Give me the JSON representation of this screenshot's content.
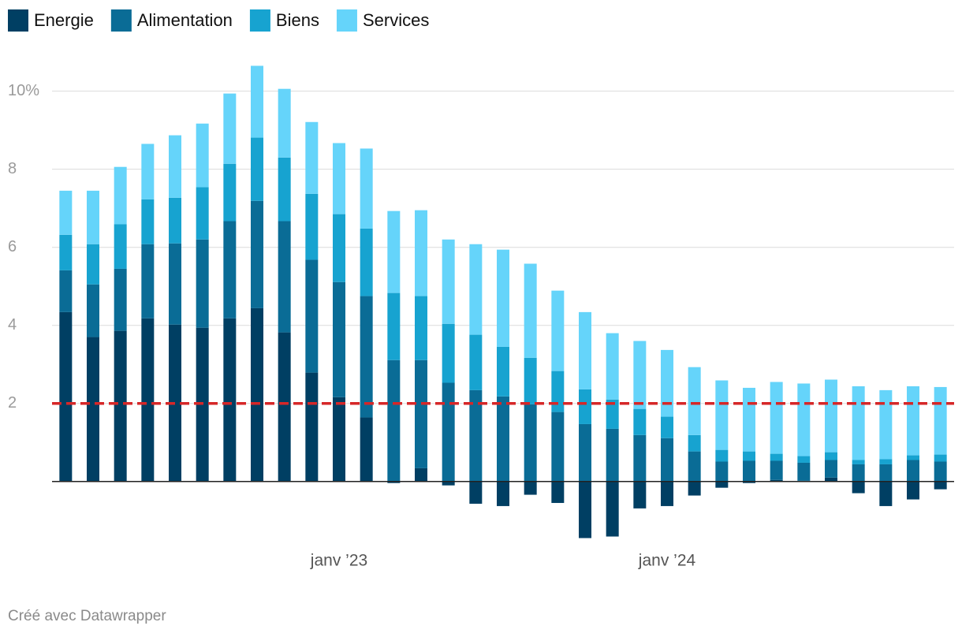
{
  "chart_data": {
    "type": "stacked_bar",
    "categories": [
      null,
      null,
      null,
      null,
      null,
      null,
      null,
      null,
      null,
      null,
      "janv ’23",
      null,
      null,
      null,
      null,
      null,
      null,
      null,
      null,
      null,
      null,
      null,
      "janv ’24",
      null,
      null,
      null,
      null,
      null,
      null,
      null,
      null,
      null,
      null
    ],
    "series": [
      {
        "name": "Energie",
        "color": "#003f63",
        "values": [
          4.34,
          3.7,
          3.86,
          4.18,
          4.02,
          3.94,
          4.18,
          4.44,
          3.82,
          2.79,
          2.16,
          1.64,
          -0.04,
          0.34,
          -0.1,
          -0.57,
          -0.63,
          -0.34,
          -0.55,
          -1.45,
          -1.41,
          -0.69,
          -0.63,
          -0.36,
          -0.16,
          -0.04,
          0.04,
          0.02,
          0.1,
          -0.3,
          -0.63,
          -0.46,
          -0.2
        ]
      },
      {
        "name": "Alimentation",
        "color": "#0a6c96",
        "values": [
          1.07,
          1.35,
          1.59,
          1.9,
          2.08,
          2.26,
          2.49,
          2.75,
          2.85,
          2.89,
          2.95,
          3.11,
          3.11,
          2.77,
          2.53,
          2.34,
          2.18,
          1.98,
          1.78,
          1.47,
          1.35,
          1.19,
          1.11,
          0.77,
          0.51,
          0.53,
          0.49,
          0.46,
          0.45,
          0.44,
          0.44,
          0.55,
          0.51
        ]
      },
      {
        "name": "Biens",
        "color": "#17a3d0",
        "values": [
          0.91,
          1.03,
          1.14,
          1.15,
          1.17,
          1.34,
          1.47,
          1.62,
          1.63,
          1.69,
          1.74,
          1.73,
          1.72,
          1.64,
          1.51,
          1.42,
          1.27,
          1.19,
          1.05,
          0.89,
          0.75,
          0.67,
          0.55,
          0.42,
          0.3,
          0.24,
          0.18,
          0.17,
          0.2,
          0.11,
          0.13,
          0.12,
          0.18
        ]
      },
      {
        "name": "Services",
        "color": "#65d4fa",
        "values": [
          1.13,
          1.37,
          1.47,
          1.42,
          1.6,
          1.63,
          1.8,
          1.84,
          1.76,
          1.84,
          1.82,
          2.05,
          2.1,
          2.2,
          2.16,
          2.32,
          2.49,
          2.41,
          2.06,
          1.98,
          1.7,
          1.74,
          1.71,
          1.74,
          1.78,
          1.63,
          1.84,
          1.86,
          1.86,
          1.89,
          1.77,
          1.77,
          1.73
        ]
      }
    ],
    "ylim": [
      -1.5,
      10.7
    ],
    "yticks": [
      2,
      4,
      6,
      8,
      {
        "value": 10,
        "label": "10%"
      }
    ],
    "grid": true,
    "reference_line": {
      "value": 2,
      "color": "#d62728"
    },
    "legend": "top-left",
    "source": "Créé avec Datawrapper"
  }
}
